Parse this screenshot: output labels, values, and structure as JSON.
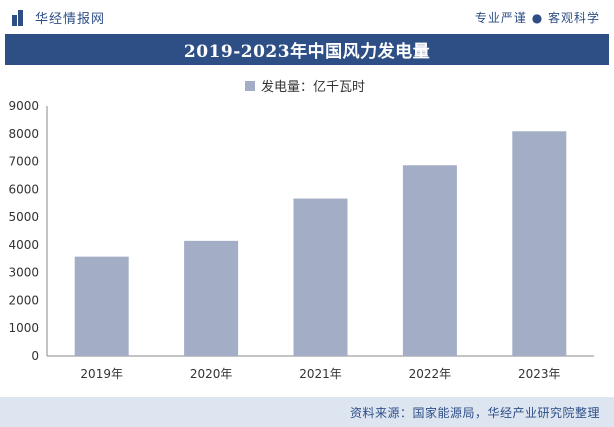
{
  "header": {
    "brand": "华经情报网",
    "slogan": "专业严谨 ● 客观科学",
    "brand_icon": "bars-logo-icon"
  },
  "footer": {
    "source": "资料来源：国家能源局，华经产业研究院整理"
  },
  "colors": {
    "navy": "#2e4f86",
    "bar": "#a3adc6",
    "footer_bg": "#dde5f1"
  },
  "chart_data": {
    "type": "bar",
    "title": "2019-2023年中国风力发电量",
    "categories": [
      "2019年",
      "2020年",
      "2021年",
      "2022年",
      "2023年"
    ],
    "series": [
      {
        "name": "发电量：亿千瓦时",
        "values": [
          3577,
          4146,
          5667,
          6867,
          8090
        ]
      }
    ],
    "ylim": [
      0,
      9000
    ],
    "yticks": [
      0,
      1000,
      2000,
      3000,
      4000,
      5000,
      6000,
      7000,
      8000,
      9000
    ],
    "grid": false,
    "legend": "top-center",
    "xlabel": "",
    "ylabel": ""
  }
}
